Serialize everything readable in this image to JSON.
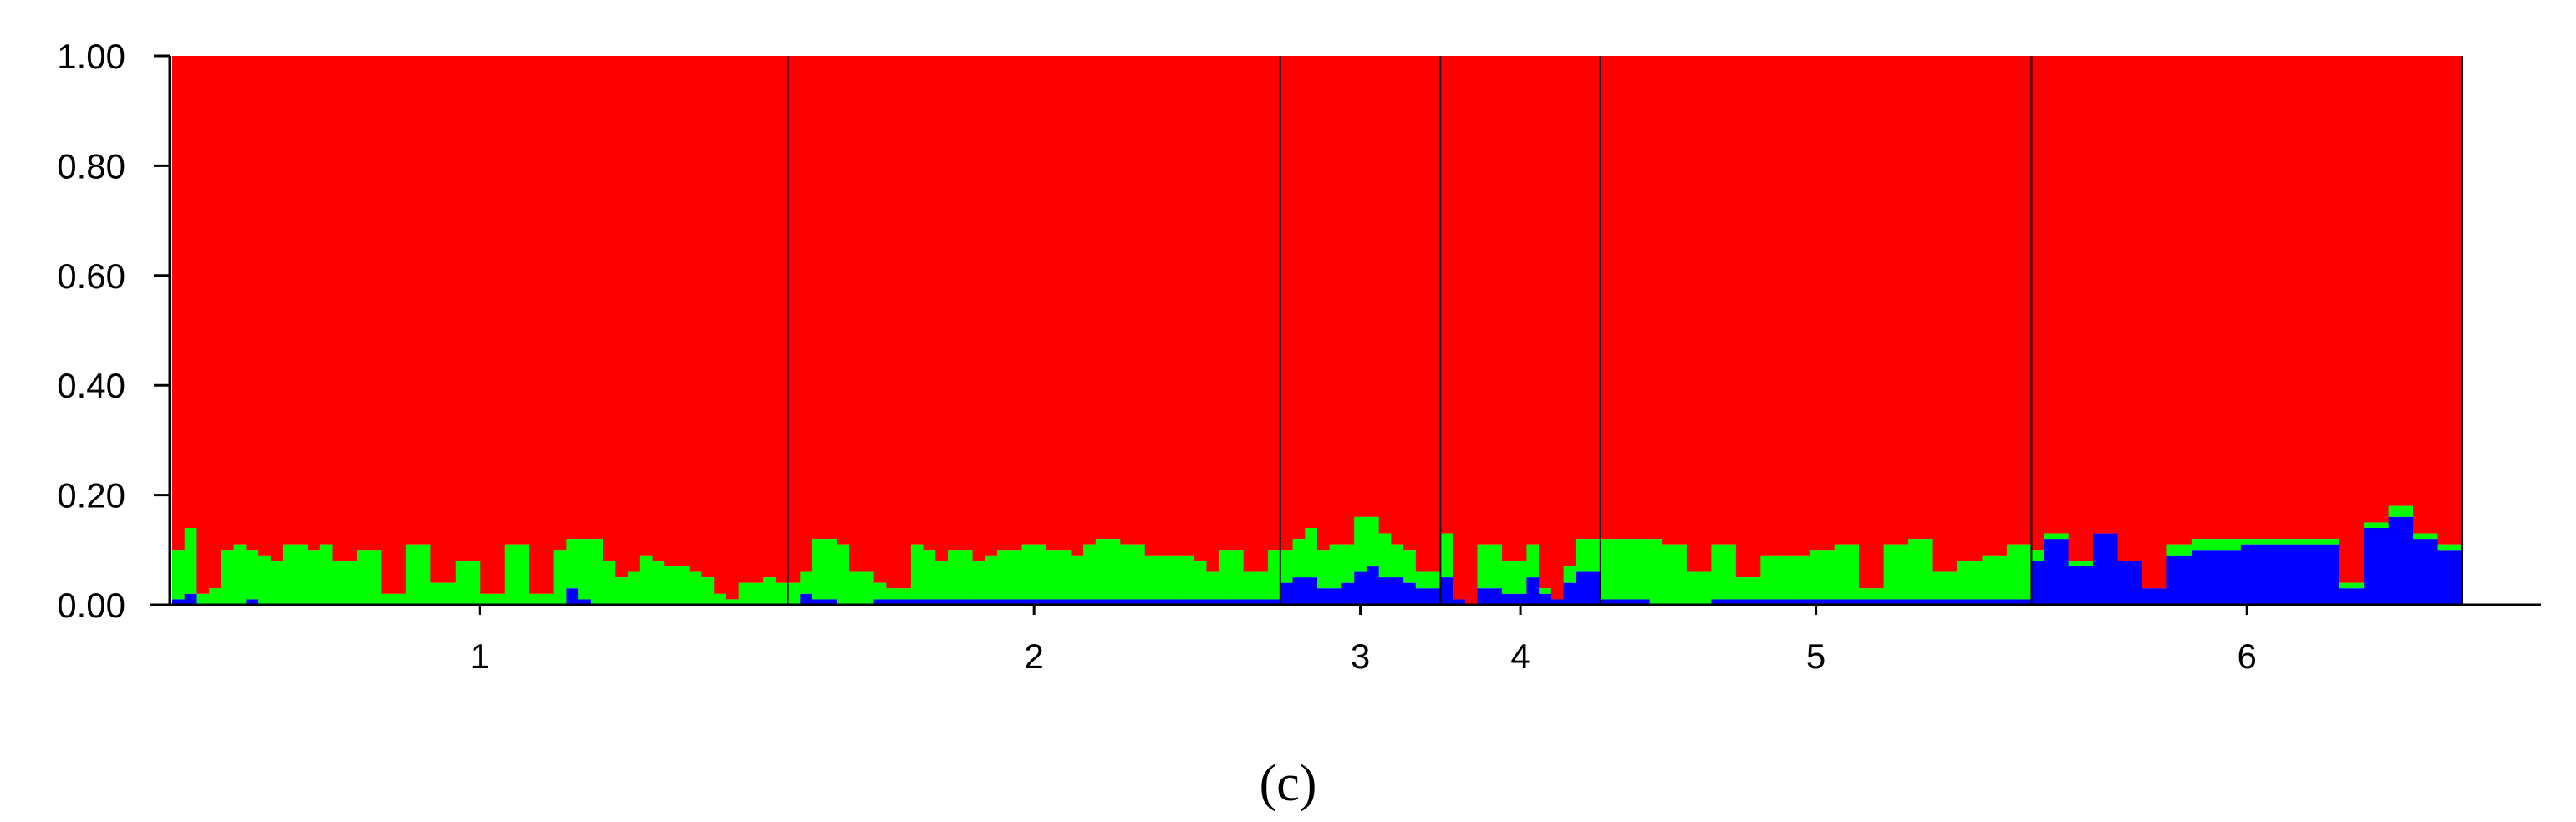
{
  "caption": "(c)",
  "chart_data": {
    "type": "bar",
    "stacked": true,
    "ylim": [
      0,
      1
    ],
    "yticks": [
      "0.00",
      "0.20",
      "0.40",
      "0.60",
      "0.80",
      "1.00"
    ],
    "components": [
      {
        "color": "#0000ff"
      },
      {
        "color": "#00ff00"
      },
      {
        "color": "#ff0000"
      }
    ],
    "populations": [
      {
        "label": "1",
        "blue": [
          0.01,
          0.02,
          0,
          0,
          0,
          0,
          0.01,
          0,
          0,
          0,
          0,
          0,
          0,
          0,
          0,
          0,
          0,
          0,
          0,
          0,
          0,
          0,
          0,
          0,
          0,
          0,
          0,
          0,
          0,
          0,
          0,
          0,
          0.03,
          0.01,
          0,
          0,
          0,
          0,
          0,
          0,
          0,
          0,
          0,
          0,
          0,
          0,
          0,
          0,
          0,
          0
        ],
        "green": [
          0.09,
          0.12,
          0.02,
          0.03,
          0.1,
          0.11,
          0.09,
          0.09,
          0.08,
          0.11,
          0.11,
          0.1,
          0.11,
          0.08,
          0.08,
          0.1,
          0.1,
          0.02,
          0.02,
          0.11,
          0.11,
          0.04,
          0.04,
          0.08,
          0.08,
          0.02,
          0.02,
          0.11,
          0.11,
          0.02,
          0.02,
          0.1,
          0.09,
          0.11,
          0.12,
          0.08,
          0.05,
          0.06,
          0.09,
          0.08,
          0.07,
          0.07,
          0.06,
          0.05,
          0.02,
          0.01,
          0.04,
          0.04,
          0.05,
          0.04
        ]
      },
      {
        "label": "2",
        "blue": [
          0,
          0.02,
          0.01,
          0.01,
          0,
          0,
          0,
          0.01,
          0.01,
          0.01,
          0.01,
          0.01,
          0.01,
          0.01,
          0.01,
          0.01,
          0.01,
          0.01,
          0.01,
          0.01,
          0.01,
          0.01,
          0.01,
          0.01,
          0.01,
          0.01,
          0.01,
          0.01,
          0.01,
          0.01,
          0.01,
          0.01,
          0.01,
          0.01,
          0.01,
          0.01,
          0.01,
          0.01,
          0.01,
          0.01
        ],
        "green": [
          0.04,
          0.04,
          0.11,
          0.11,
          0.11,
          0.06,
          0.06,
          0.03,
          0.02,
          0.02,
          0.1,
          0.09,
          0.07,
          0.09,
          0.09,
          0.07,
          0.08,
          0.09,
          0.09,
          0.1,
          0.1,
          0.09,
          0.09,
          0.08,
          0.1,
          0.11,
          0.11,
          0.1,
          0.1,
          0.08,
          0.08,
          0.08,
          0.08,
          0.07,
          0.05,
          0.09,
          0.09,
          0.05,
          0.05,
          0.09
        ]
      },
      {
        "label": "3",
        "blue": [
          0.04,
          0.05,
          0.05,
          0.03,
          0.03,
          0.04,
          0.06,
          0.07,
          0.05,
          0.05,
          0.04,
          0.03,
          0.03
        ],
        "green": [
          0.06,
          0.07,
          0.09,
          0.07,
          0.08,
          0.07,
          0.1,
          0.09,
          0.08,
          0.06,
          0.06,
          0.03,
          0.03
        ]
      },
      {
        "label": "4",
        "blue": [
          0.05,
          0.01,
          0,
          0.03,
          0.03,
          0.02,
          0.02,
          0.05,
          0.02,
          0.01,
          0.04,
          0.06,
          0.06
        ],
        "green": [
          0.08,
          0,
          0,
          0.08,
          0.08,
          0.06,
          0.06,
          0.06,
          0.01,
          0,
          0.03,
          0.06,
          0.06
        ]
      },
      {
        "label": "5",
        "blue": [
          0.01,
          0.01,
          0.01,
          0.01,
          0,
          0,
          0,
          0,
          0,
          0.01,
          0.01,
          0.01,
          0.01,
          0.01,
          0.01,
          0.01,
          0.01,
          0.01,
          0.01,
          0.01,
          0.01,
          0.01,
          0.01,
          0.01,
          0.01,
          0.01,
          0.01,
          0.01,
          0.01,
          0.01,
          0.01,
          0.01,
          0.01,
          0.01,
          0.01
        ],
        "green": [
          0.11,
          0.11,
          0.11,
          0.11,
          0.12,
          0.11,
          0.11,
          0.06,
          0.06,
          0.1,
          0.1,
          0.04,
          0.04,
          0.08,
          0.08,
          0.08,
          0.08,
          0.09,
          0.09,
          0.1,
          0.1,
          0.02,
          0.02,
          0.1,
          0.1,
          0.11,
          0.11,
          0.05,
          0.05,
          0.07,
          0.07,
          0.08,
          0.08,
          0.1,
          0.1
        ]
      },
      {
        "label": "6",
        "blue": [
          0.08,
          0.12,
          0.12,
          0.07,
          0.07,
          0.13,
          0.13,
          0.08,
          0.08,
          0.03,
          0.03,
          0.09,
          0.09,
          0.1,
          0.1,
          0.1,
          0.1,
          0.11,
          0.11,
          0.11,
          0.11,
          0.11,
          0.11,
          0.11,
          0.11,
          0.03,
          0.03,
          0.14,
          0.14,
          0.16,
          0.16,
          0.12,
          0.12,
          0.1,
          0.1
        ],
        "green": [
          0.02,
          0.01,
          0.01,
          0.01,
          0.01,
          0,
          0,
          0,
          0,
          0,
          0,
          0.02,
          0.02,
          0.02,
          0.02,
          0.02,
          0.02,
          0.01,
          0.01,
          0.01,
          0.01,
          0.01,
          0.01,
          0.01,
          0.01,
          0.01,
          0.01,
          0.01,
          0.01,
          0.02,
          0.02,
          0.01,
          0.01,
          0.01,
          0.01
        ]
      }
    ]
  }
}
